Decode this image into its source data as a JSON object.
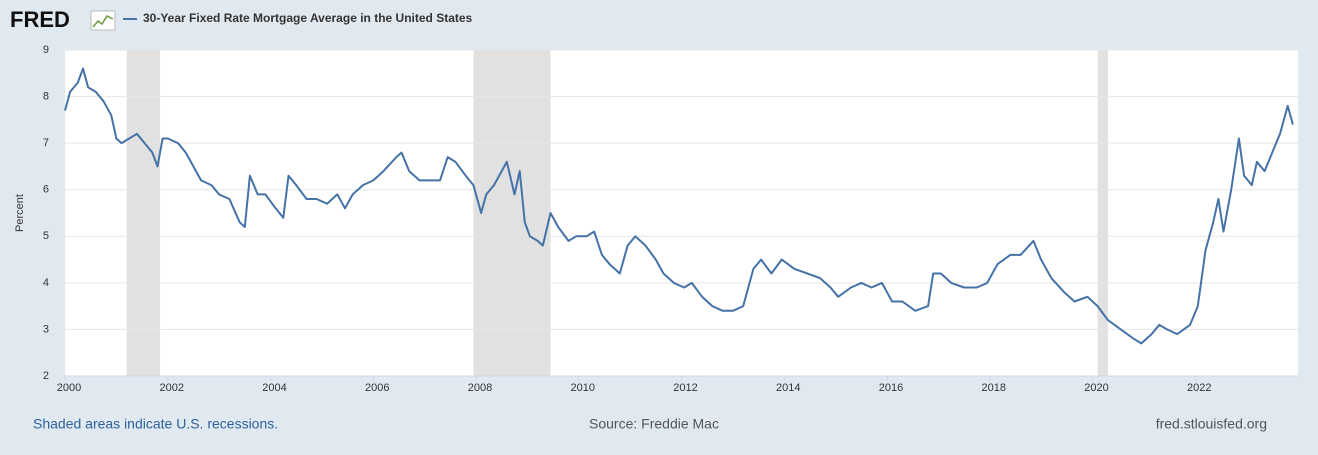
{
  "logo": "FRED",
  "chart_data": {
    "type": "line",
    "series": [
      {
        "name": "30-Year Fixed Rate Mortgage Average in the United States",
        "color": "#4572a7",
        "x": [
          2000.0,
          2000.1,
          2000.25,
          2000.35,
          2000.45,
          2000.6,
          2000.75,
          2000.9,
          2001.0,
          2001.1,
          2001.25,
          2001.4,
          2001.55,
          2001.7,
          2001.8,
          2001.9,
          2002.0,
          2002.2,
          2002.35,
          2002.5,
          2002.65,
          2002.85,
          2003.0,
          2003.2,
          2003.4,
          2003.5,
          2003.6,
          2003.75,
          2003.9,
          2004.1,
          2004.25,
          2004.35,
          2004.5,
          2004.7,
          2004.9,
          2005.1,
          2005.3,
          2005.45,
          2005.6,
          2005.8,
          2006.0,
          2006.2,
          2006.45,
          2006.55,
          2006.7,
          2006.9,
          2007.1,
          2007.3,
          2007.45,
          2007.6,
          2007.8,
          2007.95,
          2008.05,
          2008.1,
          2008.2,
          2008.35,
          2008.5,
          2008.6,
          2008.75,
          2008.85,
          2008.95,
          2009.05,
          2009.2,
          2009.3,
          2009.45,
          2009.6,
          2009.8,
          2009.95,
          2010.15,
          2010.3,
          2010.45,
          2010.6,
          2010.8,
          2010.95,
          2011.1,
          2011.3,
          2011.5,
          2011.65,
          2011.85,
          2012.05,
          2012.2,
          2012.4,
          2012.6,
          2012.8,
          2013.0,
          2013.2,
          2013.4,
          2013.55,
          2013.75,
          2013.95,
          2014.2,
          2014.45,
          2014.7,
          2014.9,
          2015.05,
          2015.3,
          2015.5,
          2015.7,
          2015.9,
          2016.1,
          2016.3,
          2016.55,
          2016.8,
          2016.9,
          2017.05,
          2017.25,
          2017.5,
          2017.75,
          2017.95,
          2018.15,
          2018.4,
          2018.6,
          2018.85,
          2019.0,
          2019.2,
          2019.45,
          2019.65,
          2019.9,
          2020.1,
          2020.3,
          2020.55,
          2020.8,
          2020.95,
          2021.15,
          2021.3,
          2021.45,
          2021.65,
          2021.9,
          2022.05,
          2022.2,
          2022.35,
          2022.45,
          2022.55,
          2022.7,
          2022.85,
          2022.95,
          2023.1,
          2023.2,
          2023.35,
          2023.5,
          2023.65,
          2023.8,
          2023.9
        ],
        "values": [
          7.7,
          8.1,
          8.3,
          8.6,
          8.2,
          8.1,
          7.9,
          7.6,
          7.1,
          7.0,
          7.1,
          7.2,
          7.0,
          6.8,
          6.5,
          7.1,
          7.1,
          7.0,
          6.8,
          6.5,
          6.2,
          6.1,
          5.9,
          5.8,
          5.3,
          5.2,
          6.3,
          5.9,
          5.9,
          5.6,
          5.4,
          6.3,
          6.1,
          5.8,
          5.8,
          5.7,
          5.9,
          5.6,
          5.9,
          6.1,
          6.2,
          6.4,
          6.7,
          6.8,
          6.4,
          6.2,
          6.2,
          6.2,
          6.7,
          6.6,
          6.3,
          6.1,
          5.7,
          5.5,
          5.9,
          6.1,
          6.4,
          6.6,
          5.9,
          6.4,
          5.3,
          5.0,
          4.9,
          4.8,
          5.5,
          5.2,
          4.9,
          5.0,
          5.0,
          5.1,
          4.6,
          4.4,
          4.2,
          4.8,
          5.0,
          4.8,
          4.5,
          4.2,
          4.0,
          3.9,
          4.0,
          3.7,
          3.5,
          3.4,
          3.4,
          3.5,
          4.3,
          4.5,
          4.2,
          4.5,
          4.3,
          4.2,
          4.1,
          3.9,
          3.7,
          3.9,
          4.0,
          3.9,
          4.0,
          3.6,
          3.6,
          3.4,
          3.5,
          4.2,
          4.2,
          4.0,
          3.9,
          3.9,
          4.0,
          4.4,
          4.6,
          4.6,
          4.9,
          4.5,
          4.1,
          3.8,
          3.6,
          3.7,
          3.5,
          3.2,
          3.0,
          2.8,
          2.7,
          2.9,
          3.1,
          3.0,
          2.9,
          3.1,
          3.5,
          4.7,
          5.3,
          5.8,
          5.1,
          6.0,
          7.1,
          6.3,
          6.1,
          6.6,
          6.4,
          6.8,
          7.2,
          7.8,
          7.4
        ]
      }
    ],
    "y_label": "Percent",
    "xlim": [
      2000,
      2024
    ],
    "xticks": [
      2000,
      2002,
      2004,
      2006,
      2008,
      2010,
      2012,
      2014,
      2016,
      2018,
      2020,
      2022
    ],
    "ylim": [
      2,
      9
    ],
    "yticks": [
      2,
      3,
      4,
      5,
      6,
      7,
      8,
      9
    ],
    "grid": true,
    "recessions": [
      [
        2001.2,
        2001.85
      ],
      [
        2007.95,
        2009.45
      ],
      [
        2020.1,
        2020.3
      ]
    ],
    "notes": {
      "recessions": "Shaded areas indicate U.S. recessions.",
      "source": "Source: Freddie Mac",
      "site": "fred.stlouisfed.org"
    }
  }
}
